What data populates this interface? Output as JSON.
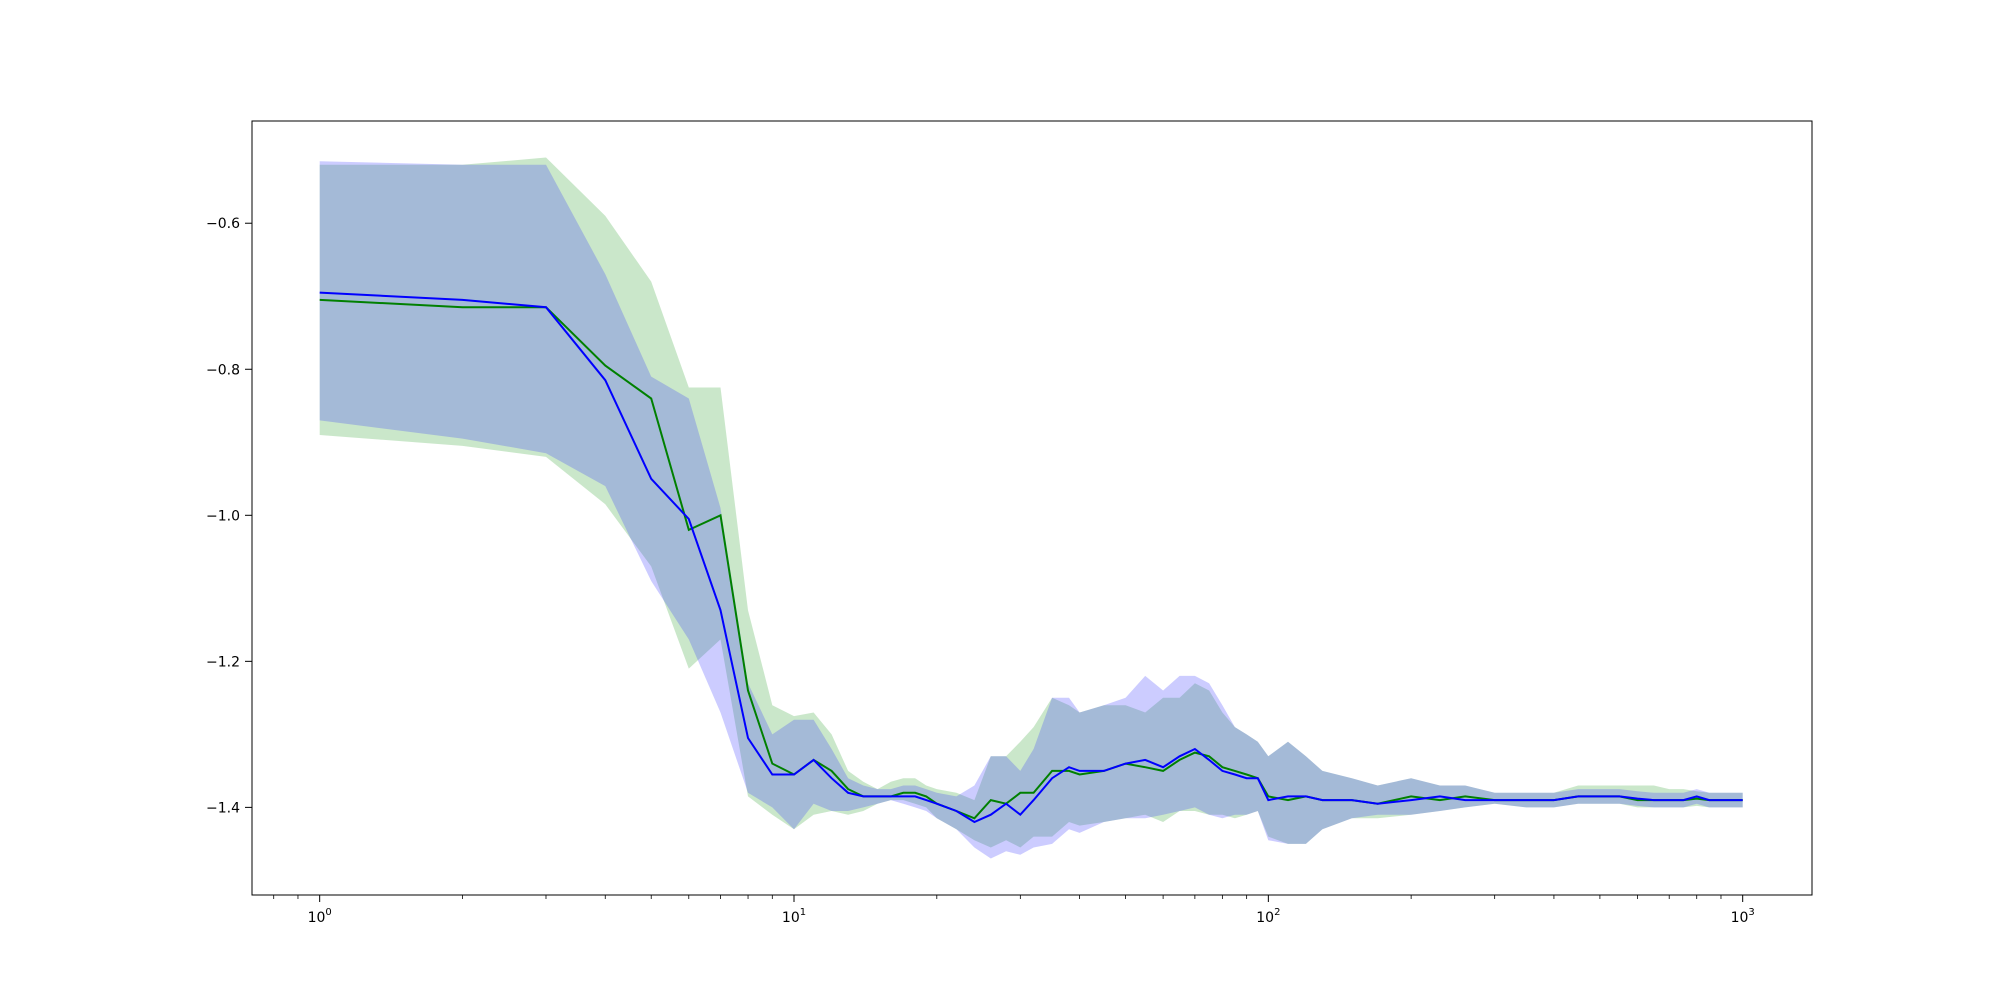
{
  "chart_data": {
    "type": "line",
    "title": "",
    "xlabel": "",
    "ylabel": "",
    "x_scale": "log",
    "xlim": [
      0.72,
      1400
    ],
    "ylim": [
      -1.52,
      -0.46
    ],
    "grid": false,
    "x_ticks": [
      {
        "value": 1,
        "base": "10",
        "exp": "0"
      },
      {
        "value": 10,
        "base": "10",
        "exp": "1"
      },
      {
        "value": 100,
        "base": "10",
        "exp": "2"
      },
      {
        "value": 1000,
        "base": "10",
        "exp": "3"
      }
    ],
    "y_ticks": [
      {
        "value": -0.6,
        "label": "−0.6"
      },
      {
        "value": -0.8,
        "label": "−0.8"
      },
      {
        "value": -1.0,
        "label": "−1.0"
      },
      {
        "value": -1.2,
        "label": "−1.2"
      },
      {
        "value": -1.4,
        "label": "−1.4"
      }
    ],
    "series": [
      {
        "color": "#008000",
        "band_color": "#2ca02c",
        "x": [
          1,
          2,
          3,
          4,
          5,
          6,
          7,
          8,
          9,
          10,
          11,
          12,
          13,
          14,
          15,
          16,
          17,
          18,
          19,
          20,
          22,
          24,
          26,
          28,
          30,
          32,
          35,
          38,
          40,
          45,
          50,
          55,
          60,
          65,
          70,
          75,
          80,
          85,
          90,
          95,
          100,
          110,
          120,
          130,
          150,
          170,
          200,
          230,
          260,
          300,
          350,
          400,
          450,
          500,
          550,
          600,
          650,
          700,
          750,
          800,
          850,
          900,
          950,
          1000
        ],
        "mean": [
          -0.705,
          -0.715,
          -0.715,
          -0.795,
          -0.84,
          -1.02,
          -1.0,
          -1.24,
          -1.34,
          -1.355,
          -1.335,
          -1.35,
          -1.375,
          -1.385,
          -1.385,
          -1.385,
          -1.38,
          -1.38,
          -1.385,
          -1.395,
          -1.405,
          -1.415,
          -1.39,
          -1.395,
          -1.38,
          -1.38,
          -1.35,
          -1.35,
          -1.355,
          -1.35,
          -1.34,
          -1.345,
          -1.35,
          -1.335,
          -1.325,
          -1.33,
          -1.345,
          -1.35,
          -1.355,
          -1.36,
          -1.385,
          -1.39,
          -1.385,
          -1.39,
          -1.39,
          -1.395,
          -1.385,
          -1.39,
          -1.385,
          -1.39,
          -1.39,
          -1.39,
          -1.385,
          -1.385,
          -1.385,
          -1.39,
          -1.39,
          -1.39,
          -1.39,
          -1.388,
          -1.39,
          -1.39,
          -1.39,
          -1.39
        ],
        "lower": [
          -0.89,
          -0.905,
          -0.92,
          -0.985,
          -1.07,
          -1.21,
          -1.17,
          -1.385,
          -1.41,
          -1.43,
          -1.41,
          -1.405,
          -1.41,
          -1.405,
          -1.395,
          -1.39,
          -1.39,
          -1.395,
          -1.4,
          -1.415,
          -1.43,
          -1.445,
          -1.455,
          -1.445,
          -1.455,
          -1.44,
          -1.44,
          -1.42,
          -1.425,
          -1.42,
          -1.415,
          -1.41,
          -1.42,
          -1.405,
          -1.405,
          -1.41,
          -1.41,
          -1.415,
          -1.41,
          -1.405,
          -1.44,
          -1.45,
          -1.45,
          -1.43,
          -1.415,
          -1.415,
          -1.41,
          -1.405,
          -1.4,
          -1.395,
          -1.4,
          -1.4,
          -1.395,
          -1.395,
          -1.395,
          -1.4,
          -1.4,
          -1.4,
          -1.4,
          -1.398,
          -1.4,
          -1.4,
          -1.4,
          -1.4
        ],
        "upper": [
          -0.52,
          -0.52,
          -0.51,
          -0.59,
          -0.68,
          -0.825,
          -0.825,
          -1.13,
          -1.26,
          -1.275,
          -1.27,
          -1.3,
          -1.35,
          -1.365,
          -1.375,
          -1.365,
          -1.36,
          -1.36,
          -1.37,
          -1.375,
          -1.38,
          -1.39,
          -1.33,
          -1.33,
          -1.31,
          -1.29,
          -1.25,
          -1.26,
          -1.27,
          -1.26,
          -1.26,
          -1.27,
          -1.25,
          -1.25,
          -1.23,
          -1.24,
          -1.27,
          -1.29,
          -1.3,
          -1.31,
          -1.33,
          -1.31,
          -1.33,
          -1.35,
          -1.36,
          -1.37,
          -1.36,
          -1.37,
          -1.37,
          -1.38,
          -1.38,
          -1.38,
          -1.37,
          -1.37,
          -1.37,
          -1.37,
          -1.37,
          -1.375,
          -1.375,
          -1.378,
          -1.38,
          -1.38,
          -1.38,
          -1.38
        ]
      },
      {
        "color": "#0000ff",
        "band_color": "#3333ff",
        "x": [
          1,
          2,
          3,
          4,
          5,
          6,
          7,
          8,
          9,
          10,
          11,
          12,
          13,
          14,
          15,
          16,
          17,
          18,
          19,
          20,
          22,
          24,
          26,
          28,
          30,
          32,
          35,
          38,
          40,
          45,
          50,
          55,
          60,
          65,
          70,
          75,
          80,
          85,
          90,
          95,
          100,
          110,
          120,
          130,
          150,
          170,
          200,
          230,
          260,
          300,
          350,
          400,
          450,
          500,
          550,
          600,
          650,
          700,
          750,
          800,
          850,
          900,
          950,
          1000
        ],
        "mean": [
          -0.695,
          -0.705,
          -0.715,
          -0.815,
          -0.95,
          -1.005,
          -1.13,
          -1.305,
          -1.355,
          -1.355,
          -1.335,
          -1.36,
          -1.38,
          -1.385,
          -1.385,
          -1.385,
          -1.385,
          -1.385,
          -1.39,
          -1.395,
          -1.405,
          -1.42,
          -1.41,
          -1.395,
          -1.41,
          -1.39,
          -1.36,
          -1.345,
          -1.35,
          -1.35,
          -1.34,
          -1.335,
          -1.345,
          -1.33,
          -1.32,
          -1.335,
          -1.35,
          -1.355,
          -1.36,
          -1.36,
          -1.39,
          -1.385,
          -1.385,
          -1.39,
          -1.39,
          -1.395,
          -1.39,
          -1.385,
          -1.39,
          -1.39,
          -1.39,
          -1.39,
          -1.385,
          -1.385,
          -1.385,
          -1.388,
          -1.39,
          -1.39,
          -1.39,
          -1.385,
          -1.39,
          -1.39,
          -1.39,
          -1.39
        ],
        "lower": [
          -0.87,
          -0.895,
          -0.915,
          -0.96,
          -1.09,
          -1.17,
          -1.27,
          -1.38,
          -1.4,
          -1.43,
          -1.395,
          -1.405,
          -1.405,
          -1.4,
          -1.395,
          -1.39,
          -1.395,
          -1.4,
          -1.405,
          -1.415,
          -1.43,
          -1.455,
          -1.47,
          -1.46,
          -1.465,
          -1.455,
          -1.45,
          -1.43,
          -1.435,
          -1.42,
          -1.415,
          -1.415,
          -1.41,
          -1.405,
          -1.4,
          -1.41,
          -1.415,
          -1.41,
          -1.41,
          -1.405,
          -1.445,
          -1.45,
          -1.45,
          -1.43,
          -1.415,
          -1.41,
          -1.41,
          -1.405,
          -1.4,
          -1.395,
          -1.4,
          -1.4,
          -1.395,
          -1.395,
          -1.395,
          -1.398,
          -1.4,
          -1.4,
          -1.4,
          -1.395,
          -1.4,
          -1.4,
          -1.4,
          -1.4
        ],
        "upper": [
          -0.515,
          -0.52,
          -0.52,
          -0.67,
          -0.81,
          -0.84,
          -0.99,
          -1.23,
          -1.3,
          -1.28,
          -1.28,
          -1.32,
          -1.36,
          -1.37,
          -1.375,
          -1.375,
          -1.37,
          -1.37,
          -1.375,
          -1.38,
          -1.385,
          -1.37,
          -1.33,
          -1.33,
          -1.35,
          -1.32,
          -1.25,
          -1.25,
          -1.27,
          -1.26,
          -1.25,
          -1.22,
          -1.24,
          -1.22,
          -1.22,
          -1.23,
          -1.26,
          -1.29,
          -1.3,
          -1.31,
          -1.33,
          -1.31,
          -1.33,
          -1.35,
          -1.36,
          -1.37,
          -1.36,
          -1.37,
          -1.37,
          -1.38,
          -1.38,
          -1.38,
          -1.375,
          -1.375,
          -1.375,
          -1.378,
          -1.38,
          -1.38,
          -1.38,
          -1.375,
          -1.38,
          -1.38,
          -1.38,
          -1.38
        ]
      }
    ]
  }
}
